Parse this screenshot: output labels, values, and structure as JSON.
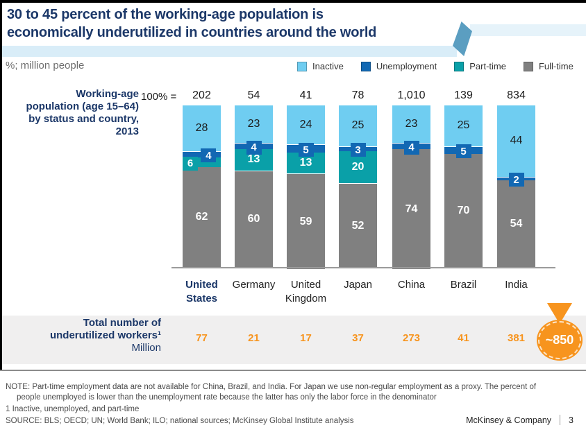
{
  "header": {
    "title_line1": "30 to 45 percent of the working-age population is",
    "title_line2": "economically underutilized in countries around the world"
  },
  "subtitle": "%; million people",
  "chart_data": {
    "type": "stacked-bar-percent",
    "title": "Working-age population (age 15–64) by status and country, 2013",
    "left_label_lines": [
      "Working-age",
      "population (age 15–64)",
      "by status and country,",
      "2013"
    ],
    "total_prefix": "100% =",
    "legend": [
      {
        "label": "Inactive",
        "color": "#6FCDF1"
      },
      {
        "label": "Unemployment",
        "color": "#1268B3"
      },
      {
        "label": "Part-time",
        "color": "#0AA0A8"
      },
      {
        "label": "Full-time",
        "color": "#808080"
      }
    ],
    "categories": [
      "United States",
      "Germany",
      "United Kingdom",
      "Japan",
      "China",
      "Brazil",
      "India"
    ],
    "highlighted_category": "United States",
    "totals": [
      "202",
      "54",
      "41",
      "78",
      "1,010",
      "139",
      "834"
    ],
    "series": [
      {
        "name": "Inactive",
        "values": [
          28,
          23,
          24,
          25,
          23,
          25,
          44
        ]
      },
      {
        "name": "Unemployment",
        "values": [
          4,
          4,
          5,
          3,
          4,
          5,
          2
        ]
      },
      {
        "name": "Part-time",
        "values": [
          6,
          13,
          13,
          20,
          null,
          null,
          null
        ]
      },
      {
        "name": "Full-time",
        "values": [
          62,
          60,
          59,
          52,
          74,
          70,
          54
        ]
      }
    ],
    "ylim": [
      0,
      100
    ],
    "legend_position": "top-right",
    "grid": false
  },
  "underutilized_row": {
    "label_line1": "Total number of",
    "label_line2": "underutilized workers¹",
    "unit": "Million",
    "values": [
      "77",
      "21",
      "17",
      "37",
      "273",
      "41",
      "381"
    ],
    "callout": "~850",
    "accent_color": "#F7941E"
  },
  "footer": {
    "note_line1": "NOTE: Part-time employment data are not available for China, Brazil, and India. For Japan we use non-regular employment as a proxy. The percent of",
    "note_line2": "people unemployed is lower than the unemployment rate because the latter has only the labor force in the denominator",
    "footnote": "1 Inactive, unemployed, and part-time",
    "source": "SOURCE: BLS; OECD; UN; World Bank; ILO; national sources; McKinsey Global Institute analysis",
    "brand": "McKinsey & Company",
    "page_number": "3"
  },
  "colors": {
    "title_navy": "#1B3768",
    "ribbon_light_blue": "#D9EDF8",
    "diamond_blue": "#5B9EC1",
    "band_gray": "#F0EFEF",
    "orange": "#F7941E"
  }
}
